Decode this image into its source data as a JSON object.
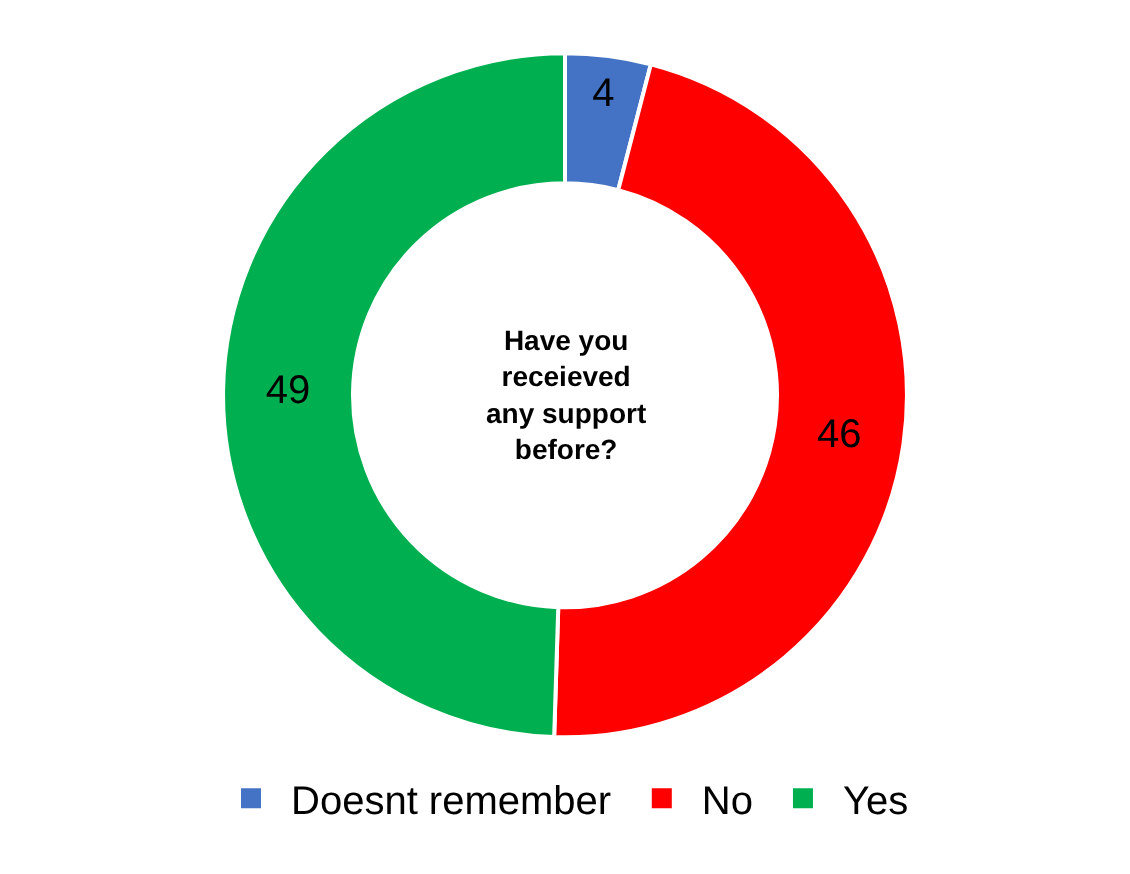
{
  "chart_data": {
    "type": "donut",
    "categories": [
      "Doesnt remember",
      "No",
      "Yes"
    ],
    "values": [
      4,
      46,
      49
    ],
    "colors": [
      "#4472c4",
      "#ff0000",
      "#00b050"
    ],
    "data_labels": true,
    "legend": "bottom",
    "annotations": [
      "Have you\nreceieved\nany support\nbefore?"
    ]
  }
}
